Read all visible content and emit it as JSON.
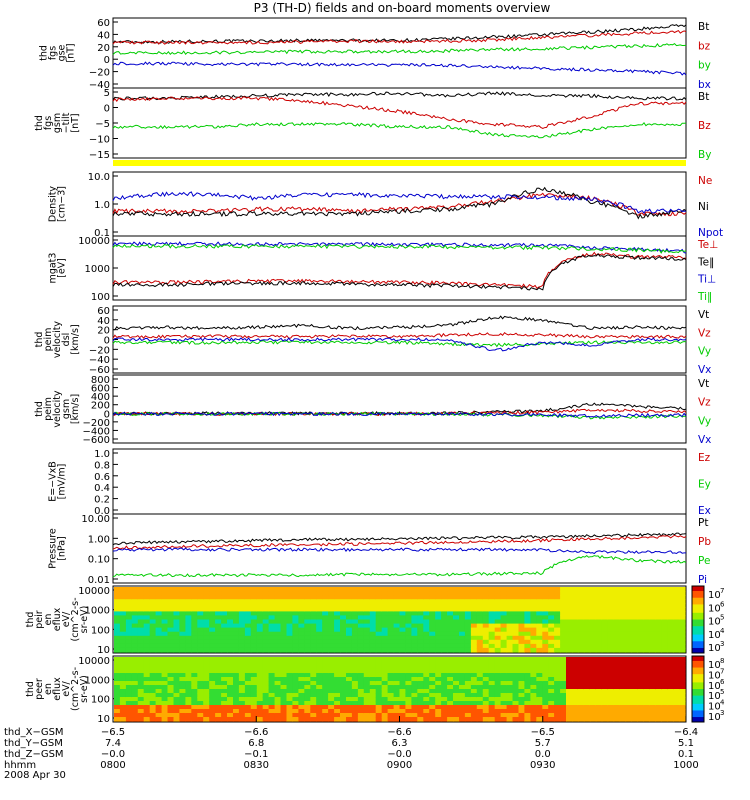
{
  "title": "P3 (TH-D) fields and on-board moments overview",
  "colors": {
    "black": "#000000",
    "red": "#cc0000",
    "green": "#00cc00",
    "blue": "#0000cc",
    "yellow": "#ffff00"
  },
  "chart_data": [
    {
      "type": "line",
      "name": "fgs-gse",
      "ylabel": [
        "thd",
        "fgs",
        "gse",
        "[nT]"
      ],
      "yticks": [
        "60",
        "40",
        "20",
        "0",
        "−20",
        "−40"
      ],
      "ylim": [
        -40,
        60
      ],
      "series": [
        {
          "name": "Bt",
          "color": "#000000",
          "values": [
            26,
            26,
            27,
            27,
            28,
            28,
            28,
            30,
            33,
            36,
            40,
            44,
            50
          ]
        },
        {
          "name": "bz",
          "color": "#cc0000",
          "values": [
            25,
            25,
            25,
            25,
            26,
            27,
            26,
            27,
            29,
            32,
            35,
            38,
            41
          ]
        },
        {
          "name": "by",
          "color": "#00cc00",
          "values": [
            10,
            10,
            11,
            11,
            12,
            12,
            12,
            13,
            15,
            16,
            18,
            20,
            22
          ]
        },
        {
          "name": "bx",
          "color": "#0000cc",
          "values": [
            -5,
            -5,
            -6,
            -6,
            -6,
            -7,
            -7,
            -8,
            -10,
            -12,
            -14,
            -16,
            -20
          ]
        }
      ]
    },
    {
      "type": "line",
      "name": "fgs-gsm-tilt",
      "ylabel": [
        "thd",
        "fgs",
        "gsm",
        "−tilt",
        "[nT]"
      ],
      "yticks": [
        "5",
        "0",
        "−5",
        "−10",
        "−15"
      ],
      "ylim": [
        -18,
        9
      ],
      "series": [
        {
          "name": "Bt",
          "color": "#000000",
          "values": [
            5,
            5,
            5.5,
            6,
            6.5,
            6.5,
            7,
            6,
            7,
            6,
            6,
            5,
            5
          ]
        },
        {
          "name": "Bz",
          "color": "#cc0000",
          "values": [
            4.5,
            5,
            5,
            5,
            4,
            2,
            0,
            -3,
            -5,
            -6,
            -2,
            3,
            3
          ]
        },
        {
          "name": "By",
          "color": "#00cc00",
          "values": [
            -6,
            -6,
            -6,
            -5,
            -5,
            -5,
            -6,
            -6,
            -9,
            -10,
            -7,
            -5,
            -5
          ]
        }
      ]
    },
    {
      "type": "line",
      "name": "density",
      "log": true,
      "ylabel": [
        "Density",
        "[cm−3]"
      ],
      "yticks": [
        "10.0",
        "1.0",
        "0.1"
      ],
      "ylim": [
        0.1,
        10
      ],
      "series": [
        {
          "name": "Ne",
          "color": "#cc0000",
          "values": [
            0.6,
            0.6,
            0.6,
            0.7,
            0.7,
            0.6,
            0.7,
            0.8,
            1.2,
            2.0,
            1.5,
            0.5,
            0.5
          ]
        },
        {
          "name": "Ni",
          "color": "#000000",
          "values": [
            0.5,
            0.5,
            0.5,
            0.5,
            0.5,
            0.5,
            0.6,
            0.7,
            1.0,
            3.0,
            1.2,
            0.4,
            0.6
          ]
        },
        {
          "name": "Npot",
          "color": "#0000cc",
          "values": [
            1.5,
            2.0,
            2.1,
            1.5,
            1.9,
            2.0,
            1.8,
            1.7,
            1.7,
            1.6,
            1.5,
            0.6,
            0.6
          ]
        }
      ]
    },
    {
      "type": "line",
      "name": "temperature",
      "log": true,
      "ylabel": [
        "mgat3",
        "[eV]"
      ],
      "yticks": [
        "10000",
        "1000",
        "100"
      ],
      "ylim": [
        30,
        10000
      ],
      "series": [
        {
          "name": "Te⊥",
          "color": "#cc0000",
          "values": [
            150,
            150,
            160,
            170,
            170,
            160,
            150,
            140,
            120,
            100,
            2000,
            1500,
            1500
          ]
        },
        {
          "name": "Te‖",
          "color": "#000000",
          "values": [
            120,
            120,
            130,
            140,
            140,
            130,
            120,
            110,
            100,
            80,
            1800,
            1400,
            1300
          ]
        },
        {
          "name": "Ti⊥",
          "color": "#0000cc",
          "values": [
            5000,
            5000,
            5000,
            4800,
            4800,
            4800,
            4600,
            4600,
            4500,
            4300,
            3500,
            3000,
            2500
          ]
        },
        {
          "name": "Ti‖",
          "color": "#00cc00",
          "values": [
            4000,
            4000,
            4000,
            3900,
            3900,
            3900,
            3800,
            3700,
            3600,
            3500,
            3200,
            2800,
            2300
          ]
        }
      ]
    },
    {
      "type": "line",
      "name": "peim-velocity-dsl",
      "ylabel": [
        "thd",
        "peim",
        "velocity",
        "dsl",
        "[km/s]"
      ],
      "yticks": [
        "60",
        "40",
        "20",
        "0",
        "−20",
        "−40",
        "−60"
      ],
      "ylim": [
        -60,
        60
      ],
      "series": [
        {
          "name": "Vt",
          "color": "#000000",
          "values": [
            20,
            22,
            20,
            22,
            25,
            20,
            22,
            25,
            40,
            35,
            20,
            22,
            20
          ]
        },
        {
          "name": "Vz",
          "color": "#cc0000",
          "values": [
            5,
            5,
            6,
            5,
            5,
            6,
            5,
            8,
            10,
            8,
            5,
            5,
            5
          ]
        },
        {
          "name": "Vy",
          "color": "#00cc00",
          "values": [
            -5,
            -5,
            -6,
            -5,
            -5,
            -6,
            -5,
            -8,
            -10,
            -8,
            -5,
            -5,
            -5
          ]
        },
        {
          "name": "Vx",
          "color": "#0000cc",
          "values": [
            0,
            0,
            0,
            0,
            0,
            0,
            0,
            0,
            -20,
            -5,
            -10,
            0,
            0
          ]
        }
      ]
    },
    {
      "type": "line",
      "name": "peim-velocity-gsm",
      "ylabel": [
        "thd",
        "peim",
        "velocity",
        "gsm",
        "[km/s]"
      ],
      "yticks": [
        "800",
        "600",
        "400",
        "200",
        "0",
        "−200",
        "−400",
        "−600"
      ],
      "ylim": [
        -600,
        800
      ],
      "series": [
        {
          "name": "Vt",
          "color": "#000000",
          "values": [
            10,
            10,
            10,
            10,
            10,
            10,
            10,
            15,
            40,
            60,
            200,
            150,
            100
          ]
        },
        {
          "name": "Vz",
          "color": "#cc0000",
          "values": [
            0,
            0,
            0,
            0,
            0,
            0,
            0,
            5,
            20,
            30,
            80,
            60,
            40
          ]
        },
        {
          "name": "Vy",
          "color": "#00cc00",
          "values": [
            0,
            0,
            0,
            0,
            0,
            0,
            0,
            -5,
            -20,
            -30,
            -80,
            -60,
            -40
          ]
        },
        {
          "name": "Vx",
          "color": "#0000cc",
          "values": [
            0,
            0,
            0,
            0,
            0,
            0,
            0,
            0,
            -10,
            -20,
            -40,
            -30,
            -20
          ]
        }
      ]
    },
    {
      "type": "line",
      "name": "e-vxb",
      "ylabel": [
        "E=−VxB",
        "[mV/m]"
      ],
      "yticks": [
        "1.0",
        "0.8",
        "0.6",
        "0.4",
        "0.2",
        "0.0"
      ],
      "ylim": [
        0,
        1
      ],
      "series": [
        {
          "name": "Ez",
          "color": "#cc0000",
          "values": []
        },
        {
          "name": "Ey",
          "color": "#00cc00",
          "values": []
        },
        {
          "name": "Ex",
          "color": "#0000cc",
          "values": []
        }
      ]
    },
    {
      "type": "line",
      "name": "pressure",
      "log": true,
      "ylabel": [
        "Pressure",
        "[nPa]"
      ],
      "yticks": [
        "10.00",
        "1.00",
        "0.10",
        "0.01"
      ],
      "ylim": [
        0.005,
        10
      ],
      "series": [
        {
          "name": "Pt",
          "color": "#000000",
          "values": [
            0.4,
            0.45,
            0.5,
            0.55,
            0.6,
            0.6,
            0.65,
            0.7,
            0.75,
            0.8,
            0.9,
            1.0,
            1.1
          ]
        },
        {
          "name": "Pb",
          "color": "#cc0000",
          "values": [
            0.25,
            0.27,
            0.3,
            0.32,
            0.35,
            0.37,
            0.4,
            0.45,
            0.5,
            0.55,
            0.65,
            0.75,
            0.85
          ]
        },
        {
          "name": "Pe",
          "color": "#00cc00",
          "values": [
            0.012,
            0.012,
            0.012,
            0.012,
            0.012,
            0.013,
            0.013,
            0.013,
            0.014,
            0.015,
            0.1,
            0.06,
            0.05
          ]
        },
        {
          "name": "Pi",
          "color": "#0000cc",
          "values": [
            0.2,
            0.2,
            0.2,
            0.2,
            0.2,
            0.2,
            0.2,
            0.2,
            0.2,
            0.19,
            0.15,
            0.15,
            0.15
          ]
        }
      ]
    },
    {
      "type": "heatmap",
      "name": "peir-en-eflux",
      "ylabel": [
        "thd",
        "peir",
        "en",
        "eflux",
        "eV/",
        "(cm^2-s-",
        "sr-eV)"
      ],
      "yticks": [
        "10000",
        "1000",
        "100",
        "10"
      ],
      "colorbar": {
        "ticks": [
          "10",
          "10",
          "10",
          "10",
          "10"
        ],
        "exps": [
          "7",
          "6",
          "5",
          "4",
          "3"
        ]
      }
    },
    {
      "type": "heatmap",
      "name": "peer-en-eflux",
      "ylabel": [
        "thd",
        "peer",
        "en",
        "eflux",
        "eV/",
        "(cm^2-s-",
        "sr-eV)"
      ],
      "yticks": [
        "10000",
        "1000",
        "100",
        "10"
      ],
      "colorbar": {
        "ticks": [
          "10",
          "10",
          "10",
          "10",
          "10",
          "10"
        ],
        "exps": [
          "8",
          "7",
          "6",
          "5",
          "4",
          "3"
        ]
      }
    }
  ],
  "xaxis": {
    "rows": [
      {
        "label": "thd_X−GSM",
        "values": [
          "−6.5",
          "−6.6",
          "−6.6",
          "−6.5",
          "−6.4"
        ]
      },
      {
        "label": "thd_Y−GSM",
        "values": [
          "7.4",
          "6.8",
          "6.3",
          "5.7",
          "5.1"
        ]
      },
      {
        "label": "thd_Z−GSM",
        "values": [
          "−0.0",
          "−0.1",
          "−0.0",
          "0.0",
          "0.1"
        ]
      },
      {
        "label": "hhmm",
        "values": [
          "0800",
          "0830",
          "0900",
          "0930",
          "1000"
        ]
      }
    ],
    "date": "2008 Apr 30"
  }
}
